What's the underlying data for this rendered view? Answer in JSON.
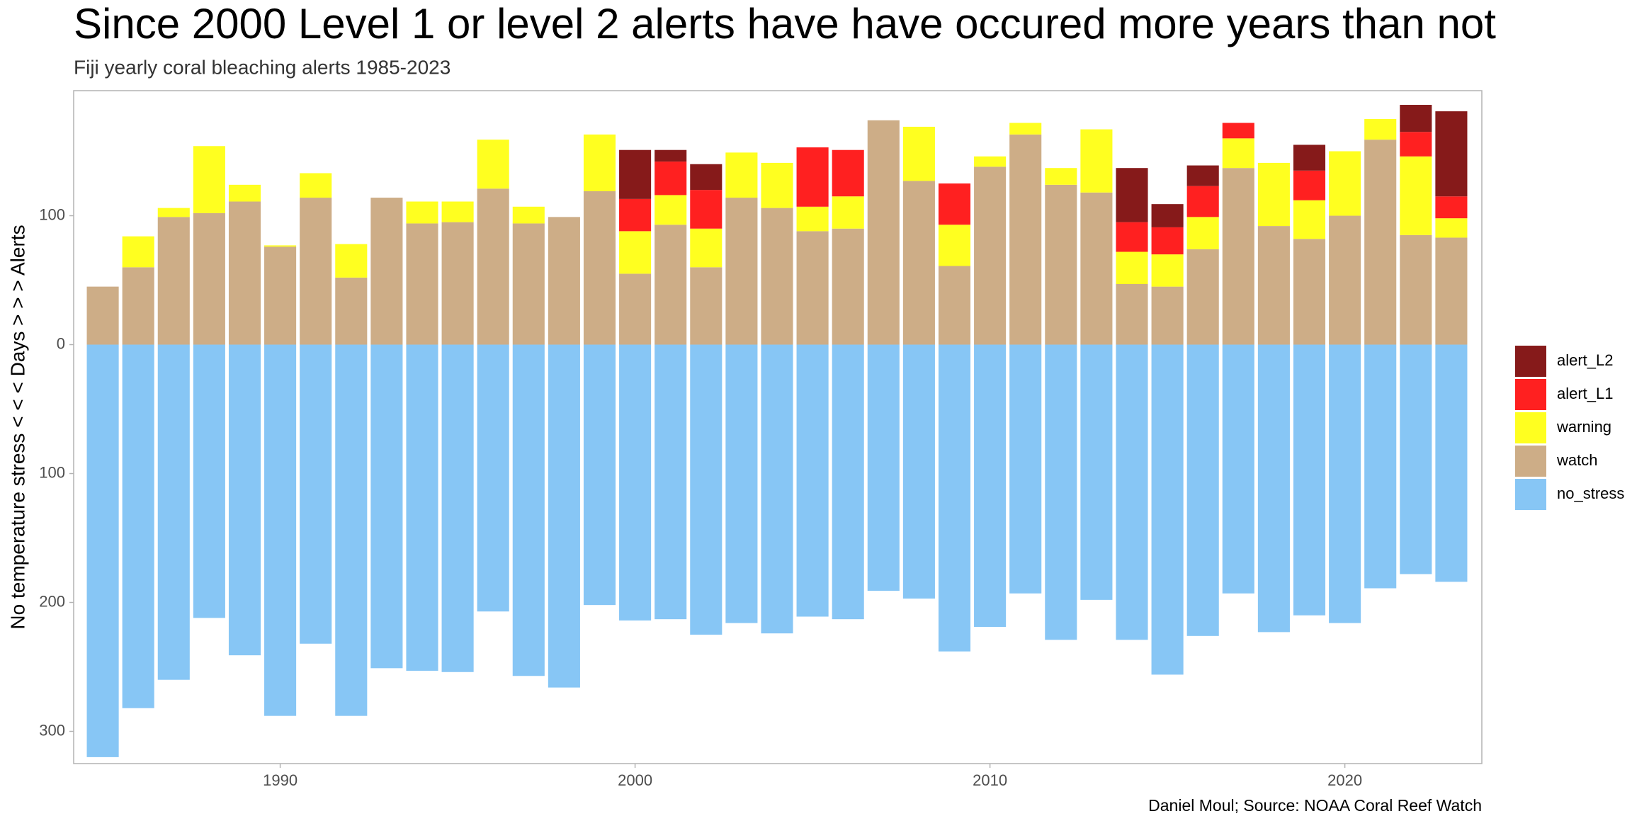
{
  "chart_data": {
    "type": "stacked_bar",
    "title": "Since 2000 Level 1 or level 2 alerts have have occured more years than not",
    "subtitle": "Fiji yearly coral bleaching alerts 1985-2023",
    "y_label": "No temperature stress   < < <     Days     > > >    Alerts",
    "caption": "Daniel Moul; Source: NOAA Coral Reef Watch",
    "x": [
      1985,
      1986,
      1987,
      1988,
      1989,
      1990,
      1991,
      1992,
      1993,
      1994,
      1995,
      1996,
      1997,
      1998,
      1999,
      2000,
      2001,
      2002,
      2003,
      2004,
      2005,
      2006,
      2007,
      2008,
      2009,
      2010,
      2011,
      2012,
      2013,
      2014,
      2015,
      2016,
      2017,
      2018,
      2019,
      2020,
      2021,
      2022,
      2023
    ],
    "series": [
      {
        "name": "alert_L2",
        "color": "#861a1a",
        "values": [
          0,
          0,
          0,
          0,
          0,
          0,
          0,
          0,
          0,
          0,
          0,
          0,
          0,
          0,
          0,
          38,
          9,
          20,
          0,
          0,
          0,
          0,
          0,
          0,
          0,
          0,
          0,
          0,
          0,
          42,
          18,
          16,
          0,
          0,
          20,
          0,
          0,
          21,
          66
        ]
      },
      {
        "name": "alert_L1",
        "color": "#ff2020",
        "values": [
          0,
          0,
          0,
          0,
          0,
          0,
          0,
          0,
          0,
          0,
          0,
          0,
          0,
          0,
          0,
          25,
          26,
          30,
          0,
          0,
          46,
          36,
          0,
          0,
          32,
          0,
          0,
          0,
          0,
          23,
          21,
          24,
          12,
          0,
          23,
          0,
          0,
          19,
          17
        ]
      },
      {
        "name": "warning",
        "color": "#ffff20",
        "values": [
          0,
          24,
          7,
          52,
          13,
          1,
          19,
          26,
          0,
          17,
          16,
          38,
          13,
          0,
          44,
          33,
          23,
          30,
          35,
          35,
          19,
          25,
          0,
          42,
          32,
          8,
          9,
          13,
          49,
          25,
          25,
          25,
          23,
          49,
          30,
          50,
          16,
          61,
          15
        ]
      },
      {
        "name": "watch",
        "color": "#cdad87",
        "values": [
          45,
          60,
          99,
          102,
          111,
          76,
          114,
          52,
          114,
          94,
          95,
          121,
          94,
          99,
          119,
          55,
          93,
          60,
          114,
          106,
          88,
          90,
          174,
          127,
          61,
          138,
          163,
          124,
          118,
          47,
          45,
          74,
          137,
          92,
          82,
          100,
          159,
          85,
          83
        ]
      },
      {
        "name": "no_stress",
        "color": "#87c6f5",
        "values": [
          -320,
          -282,
          -260,
          -212,
          -241,
          -288,
          -232,
          -288,
          -251,
          -253,
          -254,
          -207,
          -257,
          -266,
          -202,
          -214,
          -213,
          -225,
          -216,
          -224,
          -211,
          -213,
          -191,
          -197,
          -238,
          -219,
          -193,
          -229,
          -198,
          -229,
          -256,
          -226,
          -193,
          -223,
          -210,
          -216,
          -189,
          -178,
          -184
        ]
      }
    ],
    "xlim": [
      1984.18,
      2023.86
    ],
    "xticks": [
      1990,
      2000,
      2010,
      2020
    ],
    "ylim": [
      -325,
      197
    ],
    "yticks": [
      {
        "value": -300,
        "label": "300"
      },
      {
        "value": -200,
        "label": "200"
      },
      {
        "value": -100,
        "label": "100"
      },
      0,
      100
    ],
    "bar_width": 0.9,
    "grid": false
  }
}
